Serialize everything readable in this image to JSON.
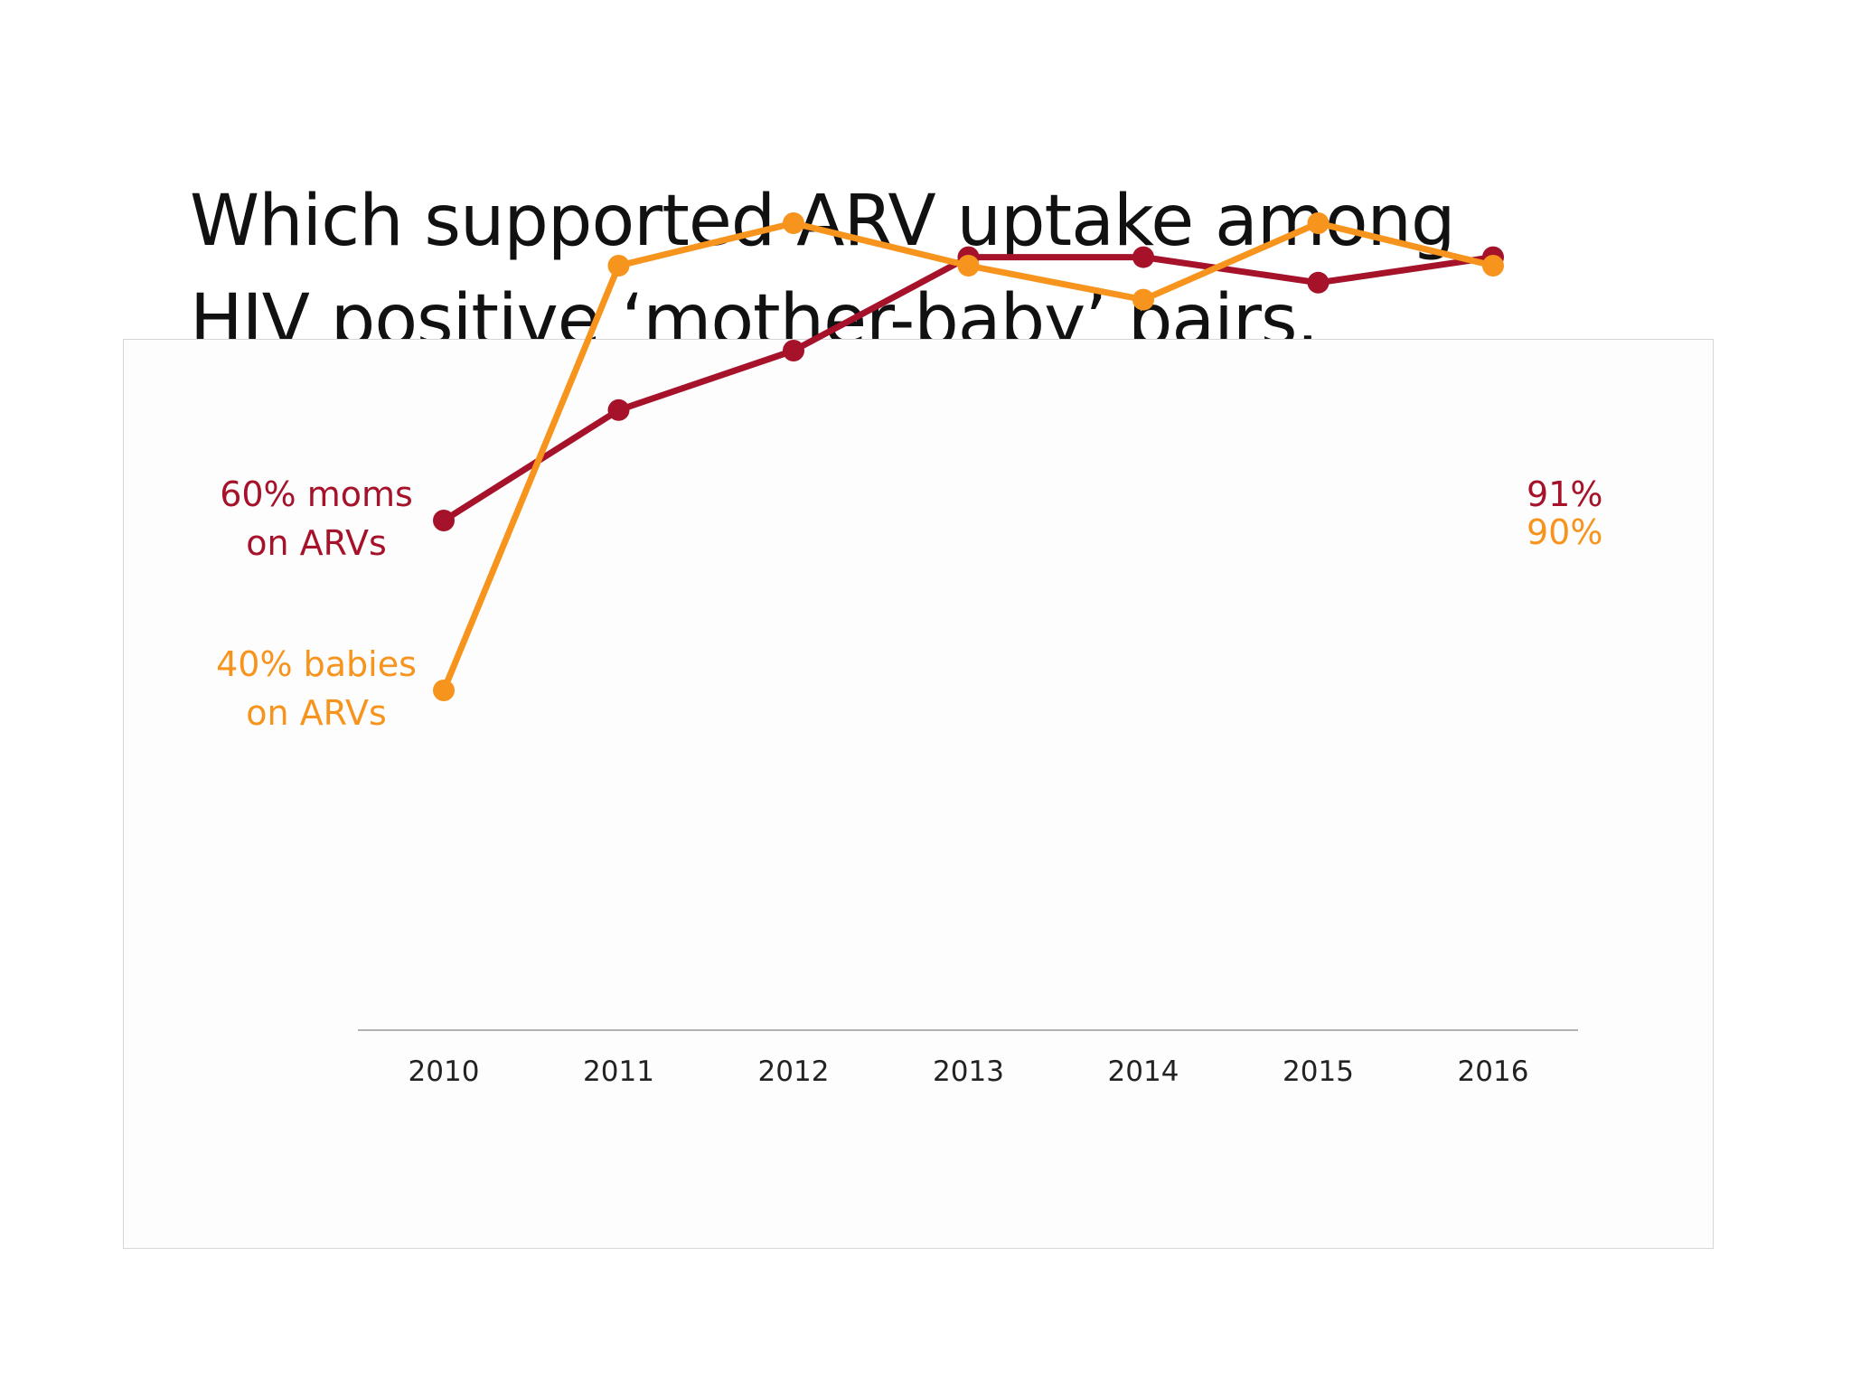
{
  "title": {
    "line1": "Which supported ARV uptake among",
    "line2": "HIV positive ‘mother-baby’ pairs."
  },
  "colors": {
    "moms": "#a5122a",
    "babies": "#f7941d",
    "axis": "#999999"
  },
  "chart_data": {
    "type": "line",
    "x": [
      "2010",
      "2011",
      "2012",
      "2013",
      "2014",
      "2015",
      "2016"
    ],
    "ylim": [
      0,
      100
    ],
    "grid": false,
    "legend": "inline labels at line start and end",
    "series": [
      {
        "key": "moms",
        "start_label_line1": "60% moms",
        "start_label_line2": "on ARVs",
        "end_label": "91%",
        "values": [
          60,
          73,
          80,
          91,
          91,
          88,
          91
        ]
      },
      {
        "key": "babies",
        "start_label_line1": "40% babies",
        "start_label_line2": "on ARVs",
        "end_label": "90%",
        "values": [
          40,
          90,
          95,
          90,
          86,
          95,
          90
        ]
      }
    ]
  }
}
